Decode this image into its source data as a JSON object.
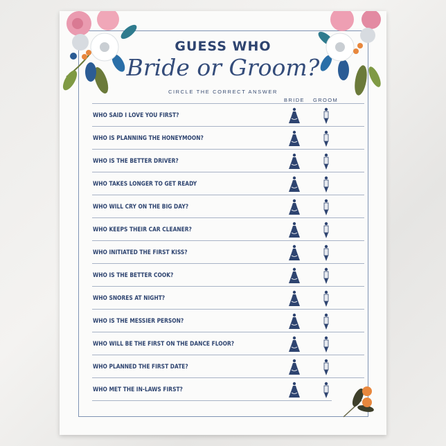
{
  "title_top": "GUESS WHO",
  "title_script": "Bride or Groom?",
  "subtitle": "CIRCLE THE CORRECT ANSWER",
  "columns": [
    "BRIDE",
    "GROOM"
  ],
  "questions": [
    "WHO SAID I LOVE YOU FIRST?",
    "WHO IS PLANNING THE HONEYMOON?",
    "WHO IS THE BETTER DRIVER?",
    "WHO TAKES LONGER TO GET READY",
    "WHO WILL CRY ON THE BIG DAY?",
    "WHO KEEPS THEIR CAR CLEANER?",
    "WHO INITIATED THE FIRST KISS?",
    "WHO IS THE BETTER COOK?",
    "WHO SNORES AT NIGHT?",
    "WHO IS THE MESSIER PERSON?",
    "WHO WILL BE THE FIRST ON THE DANCE FLOOR?",
    "WHO PLANNED THE FIRST DATE?",
    "WHO MET THE IN-LAWS FIRST?"
  ],
  "icons": {
    "bride": "bride-figure-icon",
    "groom": "groom-figure-icon",
    "decor": "floral-bouquet"
  },
  "colors": {
    "navy": "#2e4470",
    "frame": "#7f93b3",
    "orange": "#e8873d",
    "pink": "#e9a7b5"
  }
}
